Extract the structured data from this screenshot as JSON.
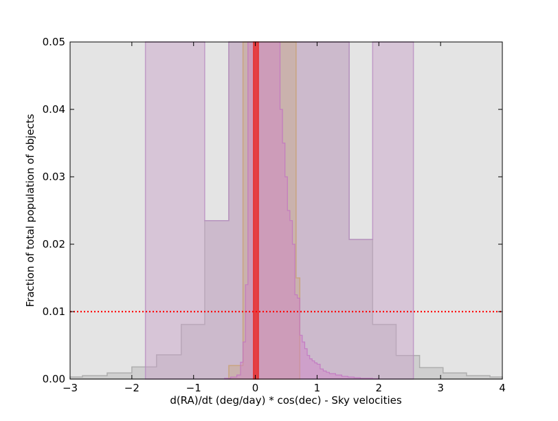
{
  "chart_data": {
    "type": "area",
    "title": "",
    "xlabel": "d(RA)/dt (deg/day) * cos(dec) - Sky velocities",
    "ylabel": "Fraction of total population of objects",
    "xlim": [
      -3,
      4
    ],
    "ylim": [
      0,
      0.05
    ],
    "x_ticks": [
      -3,
      -2,
      -1,
      0,
      1,
      2,
      3,
      4
    ],
    "y_ticks": [
      0.0,
      0.01,
      0.02,
      0.03,
      0.04,
      0.05
    ],
    "x_tick_labels": [
      "−3",
      "−2",
      "−1",
      "0",
      "1",
      "2",
      "3",
      "4"
    ],
    "y_tick_labels": [
      "0.00",
      "0.01",
      "0.02",
      "0.03",
      "0.04",
      "0.05"
    ],
    "grid": false,
    "colors": {
      "gray_fill": "#bdbdbd",
      "gray_line": "#a8a8a8",
      "purple_fill": "#c8a0c8",
      "purple_line": "#b88cc0",
      "tan_fill": "#c8a888",
      "tan_line": "#c8a070",
      "magenta_fill": "#d080c8",
      "magenta_line": "#c070c0",
      "red": "#e83030",
      "dotted": "#ff0000"
    },
    "series": [
      {
        "style": "gray",
        "edges": [
          -3.0,
          -2.8,
          -2.4,
          -2.0,
          -1.6,
          -1.2,
          -0.82,
          -0.43,
          -0.05,
          0.38,
          0.76,
          1.14,
          1.52,
          1.9,
          2.28,
          2.66,
          3.04,
          3.42,
          3.8,
          4.0
        ],
        "values": [
          0.0003,
          0.0005,
          0.0009,
          0.0018,
          0.0036,
          0.0081,
          0.0235,
          0.05,
          0.05,
          0.05,
          0.05,
          0.05,
          0.0207,
          0.0081,
          0.0035,
          0.0017,
          0.0009,
          0.0005,
          0.0003
        ]
      },
      {
        "style": "purple",
        "edges": [
          -1.78,
          -0.82,
          -0.43,
          0.38,
          0.76,
          1.52,
          1.9,
          2.56
        ],
        "values": [
          0.05,
          0.0235,
          0.05,
          0.05,
          0.05,
          0.0207,
          0.05
        ]
      },
      {
        "style": "tan",
        "edges": [
          -0.43,
          -0.2,
          0.0,
          0.2,
          0.43,
          0.66,
          0.72
        ],
        "values": [
          0.002,
          0.05,
          0.05,
          0.05,
          0.05,
          0.015
        ]
      },
      {
        "style": "magenta",
        "edges": [
          -0.5,
          -0.4,
          -0.3,
          -0.24,
          -0.2,
          -0.16,
          -0.12,
          -0.08,
          -0.04,
          0.0,
          0.04,
          0.08,
          0.12,
          0.16,
          0.2,
          0.24,
          0.28,
          0.32,
          0.36,
          0.4,
          0.44,
          0.48,
          0.52,
          0.56,
          0.6,
          0.64,
          0.68,
          0.72,
          0.76,
          0.8,
          0.84,
          0.88,
          0.92,
          0.96,
          1.0,
          1.05,
          1.1,
          1.15,
          1.2,
          1.3,
          1.4,
          1.5,
          1.6,
          1.7,
          1.8,
          1.9,
          2.0
        ],
        "values": [
          0.0001,
          0.0003,
          0.0006,
          0.0025,
          0.0055,
          0.014,
          0.05,
          0.05,
          0.05,
          0.05,
          0.05,
          0.05,
          0.05,
          0.05,
          0.05,
          0.05,
          0.05,
          0.05,
          0.05,
          0.04,
          0.035,
          0.03,
          0.025,
          0.0235,
          0.02,
          0.0125,
          0.012,
          0.0065,
          0.0055,
          0.0045,
          0.0035,
          0.003,
          0.0027,
          0.0024,
          0.0022,
          0.0015,
          0.0012,
          0.001,
          0.0008,
          0.0006,
          0.0004,
          0.0003,
          0.0002,
          0.0001,
          0.0001,
          5e-05
        ]
      },
      {
        "style": "red",
        "edges": [
          -0.03,
          0.05
        ],
        "values": [
          0.05
        ]
      }
    ],
    "reference_line": {
      "y": 0.01,
      "style": "dotted",
      "color": "red"
    }
  }
}
